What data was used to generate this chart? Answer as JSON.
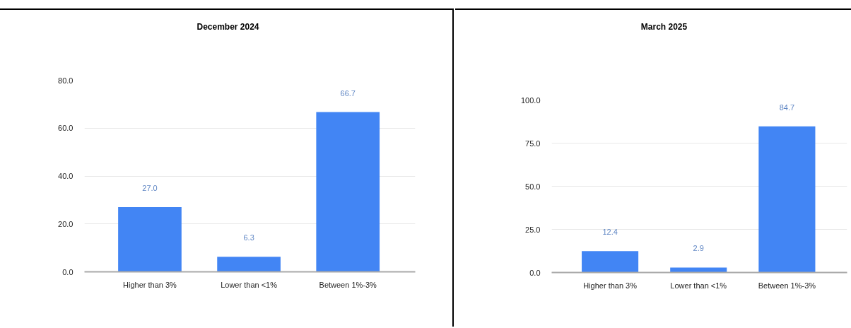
{
  "chart_data": [
    {
      "type": "bar",
      "title": "December 2024",
      "categories": [
        "Higher than 3%",
        "Lower than <1%",
        "Between 1%-3%"
      ],
      "values": [
        27.0,
        6.3,
        66.7
      ],
      "value_labels": [
        "27.0",
        "6.3",
        "66.7"
      ],
      "color": "#4285f4",
      "ylim": [
        0,
        80
      ],
      "yticks": [
        {
          "value": 0,
          "label": "0.0"
        },
        {
          "value": 20,
          "label": "20.0"
        },
        {
          "value": 40,
          "label": "40.0"
        },
        {
          "value": 60,
          "label": "60.0"
        },
        {
          "value": 80,
          "label": "80.0"
        }
      ],
      "grid": "y"
    },
    {
      "type": "bar",
      "title": "March 2025",
      "categories": [
        "Higher than 3%",
        "Lower than <1%",
        "Between 1%-3%"
      ],
      "values": [
        12.4,
        2.9,
        84.7
      ],
      "value_labels": [
        "12.4",
        "2.9",
        "84.7"
      ],
      "color": "#4285f4",
      "ylim": [
        0,
        100
      ],
      "yticks": [
        {
          "value": 0,
          "label": "0.0"
        },
        {
          "value": 25,
          "label": "25.0"
        },
        {
          "value": 50,
          "label": "50.0"
        },
        {
          "value": 75,
          "label": "75.0"
        },
        {
          "value": 100,
          "label": "100.0"
        }
      ],
      "grid": "y"
    }
  ]
}
